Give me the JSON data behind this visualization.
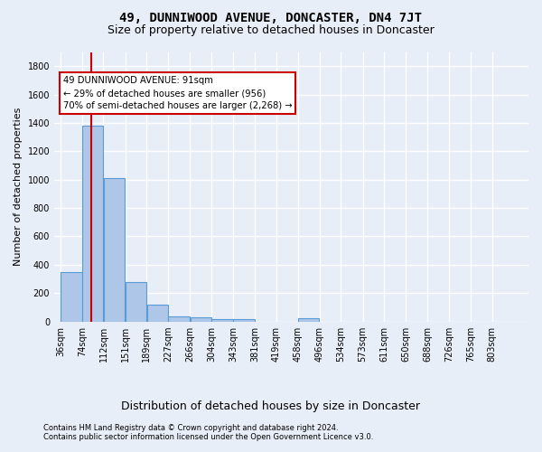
{
  "title": "49, DUNNIWOOD AVENUE, DONCASTER, DN4 7JT",
  "subtitle": "Size of property relative to detached houses in Doncaster",
  "xlabel": "Distribution of detached houses by size in Doncaster",
  "ylabel": "Number of detached properties",
  "footer_line1": "Contains HM Land Registry data © Crown copyright and database right 2024.",
  "footer_line2": "Contains public sector information licensed under the Open Government Licence v3.0.",
  "annotation_line1": "49 DUNNIWOOD AVENUE: 91sqm",
  "annotation_line2": "← 29% of detached houses are smaller (956)",
  "annotation_line3": "70% of semi-detached houses are larger (2,268) →",
  "bin_labels": [
    "36sqm",
    "74sqm",
    "112sqm",
    "151sqm",
    "189sqm",
    "227sqm",
    "266sqm",
    "304sqm",
    "343sqm",
    "381sqm",
    "419sqm",
    "458sqm",
    "496sqm",
    "534sqm",
    "573sqm",
    "611sqm",
    "650sqm",
    "688sqm",
    "726sqm",
    "765sqm",
    "803sqm"
  ],
  "bin_left_edges": [
    36,
    74,
    112,
    151,
    189,
    227,
    266,
    304,
    343,
    381,
    419,
    458,
    496,
    534,
    573,
    611,
    650,
    688,
    726,
    765,
    803
  ],
  "bin_width": 38,
  "bar_heights": [
    350,
    1380,
    1010,
    280,
    120,
    35,
    30,
    20,
    15,
    0,
    0,
    25,
    0,
    0,
    0,
    0,
    0,
    0,
    0,
    0,
    0
  ],
  "bar_color": "#aec6e8",
  "bar_edge_color": "#5b9bd5",
  "red_line_x": 91,
  "ylim": [
    0,
    1900
  ],
  "yticks": [
    0,
    200,
    400,
    600,
    800,
    1000,
    1200,
    1400,
    1600,
    1800
  ],
  "background_color": "#e8eef8",
  "plot_bg_color": "#e8eef8",
  "grid_color": "#ffffff",
  "annotation_box_facecolor": "#ffffff",
  "annotation_box_edgecolor": "#cc0000",
  "title_fontsize": 10,
  "subtitle_fontsize": 9,
  "ylabel_fontsize": 8,
  "xlabel_fontsize": 9,
  "tick_fontsize": 7,
  "footer_fontsize": 6
}
